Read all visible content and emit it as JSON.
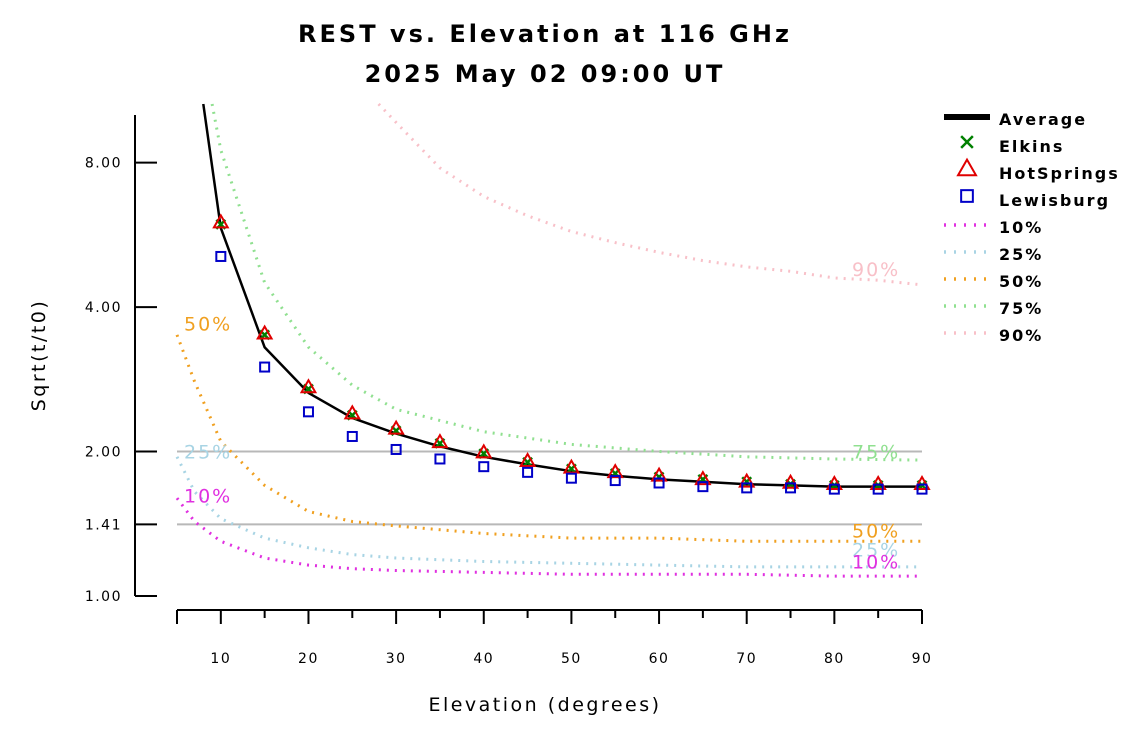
{
  "chart_data": {
    "type": "line",
    "title": "REST vs. Elevation at 116 GHz",
    "subtitle": "2025 May 02 09:00 UT",
    "xlabel": "Elevation (degrees)",
    "ylabel": "Sqrt(t/t0)",
    "x_ticks": [
      10,
      20,
      30,
      40,
      50,
      60,
      70,
      80,
      90
    ],
    "y_ticks": [
      {
        "value": 1.0,
        "label": "1.00"
      },
      {
        "value": 1.41,
        "label": "1.41"
      },
      {
        "value": 2.0,
        "label": "2.00"
      },
      {
        "value": 4.0,
        "label": "4.00"
      },
      {
        "value": 8.0,
        "label": "8.00"
      }
    ],
    "y_scale": "log",
    "xlim": [
      5,
      90
    ],
    "ylim": [
      1.0,
      10.6
    ],
    "reference_lines": [
      1.41,
      2.0
    ],
    "grid": false,
    "legend_position": "right",
    "series": [
      {
        "name": "Average",
        "kind": "line",
        "color": "#000000",
        "x": [
          8,
          10,
          15,
          20,
          25,
          30,
          35,
          40,
          45,
          50,
          55,
          60,
          65,
          70,
          75,
          80,
          85,
          90
        ],
        "y": [
          10.6,
          5.85,
          3.3,
          2.65,
          2.35,
          2.18,
          2.05,
          1.95,
          1.88,
          1.82,
          1.78,
          1.75,
          1.73,
          1.71,
          1.7,
          1.69,
          1.69,
          1.69
        ]
      },
      {
        "name": "Elkins",
        "kind": "marker",
        "marker": "x",
        "color": "#008000",
        "x": [
          10,
          15,
          20,
          25,
          30,
          35,
          40,
          45,
          50,
          55,
          60,
          65,
          70,
          75,
          80,
          85,
          90
        ],
        "y": [
          5.95,
          3.5,
          2.7,
          2.38,
          2.21,
          2.08,
          1.98,
          1.9,
          1.84,
          1.8,
          1.77,
          1.75,
          1.73,
          1.71,
          1.7,
          1.7,
          1.7
        ]
      },
      {
        "name": "HotSprings",
        "kind": "marker",
        "marker": "triangle",
        "color": "#e00000",
        "x": [
          10,
          15,
          20,
          25,
          30,
          35,
          40,
          45,
          50,
          55,
          60,
          65,
          70,
          75,
          80,
          85,
          90
        ],
        "y": [
          6.0,
          3.52,
          2.72,
          2.4,
          2.23,
          2.09,
          1.99,
          1.91,
          1.85,
          1.81,
          1.78,
          1.75,
          1.73,
          1.72,
          1.71,
          1.71,
          1.71
        ]
      },
      {
        "name": "Lewisburg",
        "kind": "marker",
        "marker": "square",
        "color": "#0000c8",
        "x": [
          10,
          15,
          20,
          25,
          30,
          35,
          40,
          45,
          50,
          55,
          60,
          65,
          70,
          75,
          80,
          85,
          90
        ],
        "y": [
          5.1,
          3.0,
          2.42,
          2.15,
          2.02,
          1.93,
          1.86,
          1.81,
          1.76,
          1.74,
          1.72,
          1.69,
          1.68,
          1.68,
          1.67,
          1.67,
          1.67
        ]
      },
      {
        "name": "10%",
        "kind": "dotted",
        "color": "#e030e0",
        "x": [
          5,
          7,
          10,
          15,
          20,
          25,
          30,
          40,
          50,
          60,
          70,
          80,
          90
        ],
        "y": [
          1.6,
          1.43,
          1.3,
          1.2,
          1.16,
          1.14,
          1.13,
          1.12,
          1.11,
          1.11,
          1.11,
          1.1,
          1.1
        ]
      },
      {
        "name": "25%",
        "kind": "dotted",
        "color": "#a8d4e4",
        "x": [
          5,
          7,
          10,
          15,
          20,
          25,
          30,
          40,
          50,
          60,
          70,
          80,
          90
        ],
        "y": [
          1.95,
          1.65,
          1.45,
          1.32,
          1.26,
          1.22,
          1.2,
          1.18,
          1.17,
          1.16,
          1.15,
          1.15,
          1.15
        ]
      },
      {
        "name": "50%",
        "kind": "dotted",
        "color": "#f0a020",
        "x": [
          5,
          7,
          10,
          15,
          20,
          25,
          30,
          40,
          50,
          60,
          70,
          80,
          90
        ],
        "y": [
          3.5,
          2.8,
          2.1,
          1.7,
          1.5,
          1.43,
          1.4,
          1.35,
          1.32,
          1.32,
          1.3,
          1.3,
          1.3
        ]
      },
      {
        "name": "75%",
        "kind": "dotted",
        "color": "#90e090",
        "x": [
          9,
          10,
          15,
          20,
          25,
          30,
          40,
          50,
          60,
          70,
          80,
          90
        ],
        "y": [
          10.6,
          8.5,
          4.5,
          3.3,
          2.75,
          2.45,
          2.2,
          2.07,
          2.0,
          1.95,
          1.93,
          1.92
        ]
      },
      {
        "name": "90%",
        "kind": "dotted",
        "color": "#f8c0c8",
        "x": [
          28,
          30,
          35,
          40,
          45,
          50,
          55,
          60,
          65,
          70,
          75,
          80,
          85,
          90
        ],
        "y": [
          10.6,
          9.7,
          7.8,
          6.8,
          6.2,
          5.75,
          5.45,
          5.2,
          5.0,
          4.85,
          4.75,
          4.6,
          4.55,
          4.45
        ]
      }
    ],
    "percentile_labels": [
      {
        "text": "90%",
        "color": "#f8c0c8",
        "side": "right",
        "y": 4.8
      },
      {
        "text": "75%",
        "color": "#90e090",
        "side": "right",
        "y": 2.0
      },
      {
        "text": "50%",
        "color": "#f0a020",
        "side": "right",
        "y": 1.37
      },
      {
        "text": "25%",
        "color": "#a8d4e4",
        "side": "right",
        "y": 1.25
      },
      {
        "text": "10%",
        "color": "#e030e0",
        "side": "right",
        "y": 1.18
      },
      {
        "text": "50%",
        "color": "#f0a020",
        "side": "left",
        "y": 3.7
      },
      {
        "text": "25%",
        "color": "#a8d4e4",
        "side": "left",
        "y": 2.0
      },
      {
        "text": "10%",
        "color": "#e030e0",
        "side": "left",
        "y": 1.62
      }
    ]
  },
  "colors": {
    "reference_line": "#b8b8b8",
    "axis": "#000000"
  }
}
